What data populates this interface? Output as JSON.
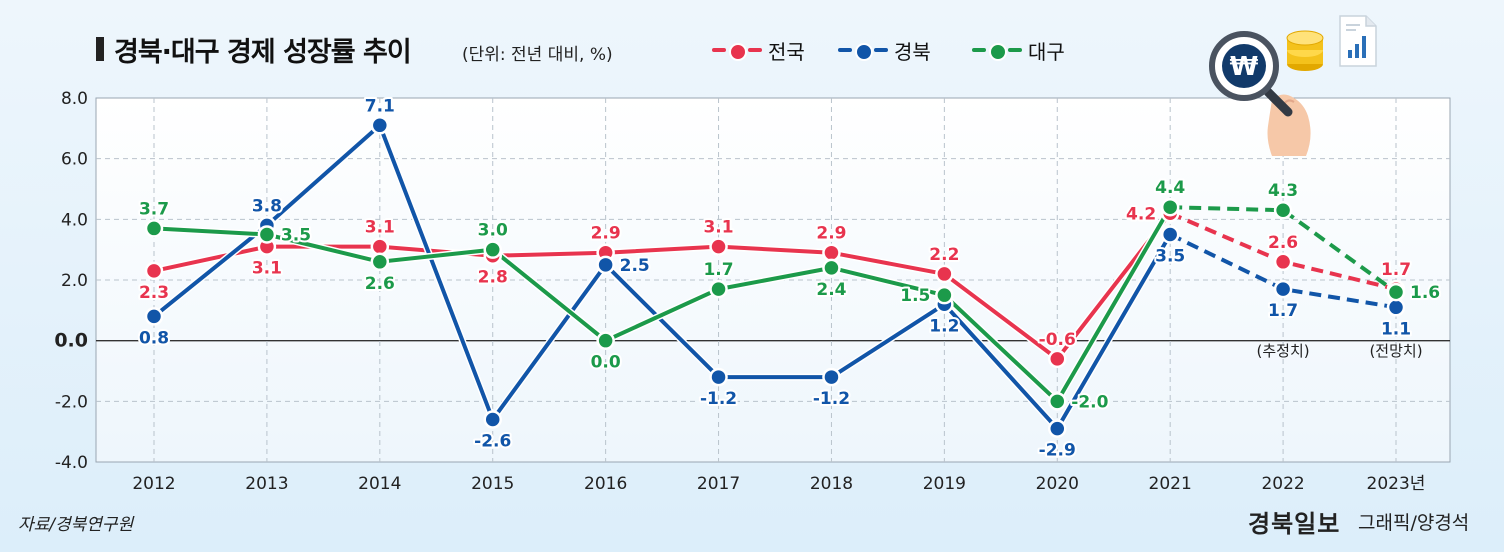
{
  "header": {
    "title": "경북·대구 경제 성장률 추이",
    "unit_note": "(단위: 전년 대비, %)"
  },
  "legend": [
    {
      "name": "전국",
      "color": "#e8344e"
    },
    {
      "name": "경북",
      "color": "#1155a8"
    },
    {
      "name": "대구",
      "color": "#1c9a4a"
    }
  ],
  "footer": {
    "source": "자료/경북연구원",
    "brand": "경북일보",
    "credit": "그래픽/양경석"
  },
  "chart_data": {
    "type": "line",
    "title": "경북·대구 경제 성장률 추이",
    "ylabel": "전년 대비, %",
    "xlabel": "",
    "ylim": [
      -4.0,
      8.0
    ],
    "yticks": [
      "8.0",
      "6.0",
      "4.0",
      "2.0",
      "0.0",
      "-2.0",
      "-4.0"
    ],
    "categories": [
      "2012",
      "2013",
      "2014",
      "2015",
      "2016",
      "2017",
      "2018",
      "2019",
      "2020",
      "2021",
      "2022",
      "2023년"
    ],
    "category_notes": [
      {
        "index": 10,
        "text": "(추정치)"
      },
      {
        "index": 11,
        "text": "(전망치)"
      }
    ],
    "dashed_from_index": 10,
    "series": [
      {
        "name": "전국",
        "color": "#e8344e",
        "values": [
          2.3,
          3.1,
          3.1,
          2.8,
          2.9,
          3.1,
          2.9,
          2.2,
          -0.6,
          4.2,
          2.6,
          1.7
        ],
        "labels": [
          "2.3",
          "3.1",
          "3.1",
          "2.8",
          "2.9",
          "3.1",
          "2.9",
          "2.2",
          "-0.6",
          "4.2",
          "2.6",
          "1.7"
        ]
      },
      {
        "name": "경북",
        "color": "#1155a8",
        "values": [
          0.8,
          3.8,
          7.1,
          -2.6,
          2.5,
          -1.2,
          -1.2,
          1.2,
          -2.9,
          3.5,
          1.7,
          1.1
        ],
        "labels": [
          "0.8",
          "3.8",
          "7.1",
          "-2.6",
          "2.5",
          "-1.2",
          "-1.2",
          "1.2",
          "-2.9",
          "3.5",
          "1.7",
          "1.1"
        ]
      },
      {
        "name": "대구",
        "color": "#1c9a4a",
        "values": [
          3.7,
          3.5,
          2.6,
          3.0,
          0.0,
          1.7,
          2.4,
          1.5,
          -2.0,
          4.4,
          4.3,
          1.6
        ],
        "labels": [
          "3.7",
          "3.5",
          "2.6",
          "3.0",
          "0.0",
          "1.7",
          "2.4",
          "1.5",
          "-2.0",
          "4.4",
          "4.3",
          "1.6"
        ]
      }
    ]
  }
}
